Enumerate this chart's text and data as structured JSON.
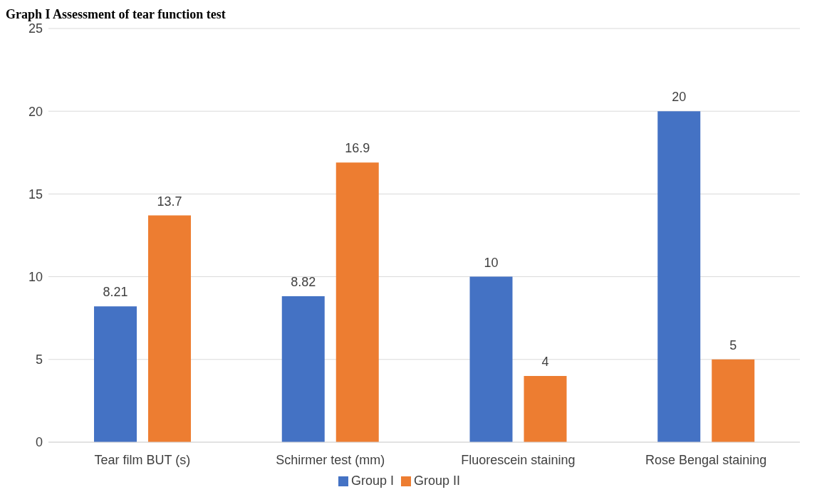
{
  "chart_data": {
    "type": "bar",
    "title": "Graph I Assessment of tear function test",
    "categories": [
      "Tear film BUT (s)",
      "Schirmer test (mm)",
      "Fluorescein staining",
      "Rose Bengal staining"
    ],
    "series": [
      {
        "name": "Group I",
        "color": "#4472c4",
        "values": [
          8.21,
          8.82,
          10,
          20
        ]
      },
      {
        "name": "Group II",
        "color": "#ed7d31",
        "values": [
          13.7,
          16.9,
          4,
          5
        ]
      }
    ],
    "ylim": [
      0,
      25
    ],
    "yticks": [
      0,
      5,
      10,
      15,
      20,
      25
    ],
    "grid": "y",
    "legend": "bottom",
    "data_labels": true
  }
}
